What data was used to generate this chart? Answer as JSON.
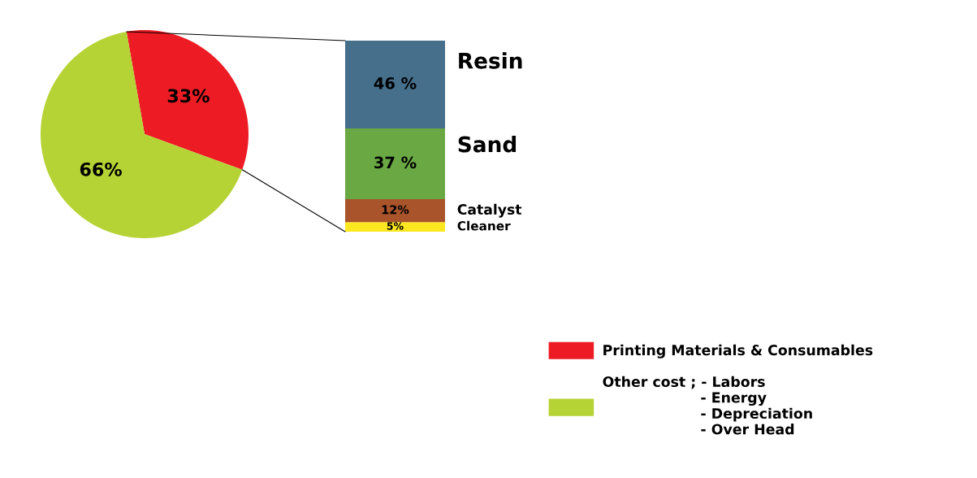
{
  "chart_data": [
    {
      "type": "pie",
      "categories": [
        "Printing Materials & Consumables",
        "Other cost ; - Labors\n                    - Energy\n                    - Depreciation\n                    - Over Head"
      ],
      "values": [
        33,
        66
      ],
      "colors": [
        "#ed1c24",
        "#b5d334"
      ],
      "value_labels": [
        "33%",
        "66%"
      ],
      "legend": "bottom right"
    },
    {
      "type": "bar",
      "stacked": true,
      "categories": [
        null
      ],
      "tick_labels": false,
      "ylim": [
        0,
        100
      ],
      "series": [
        {
          "name": "Cleaner",
          "color": "#fde720",
          "values": [
            5
          ],
          "value_labels": [
            "5%"
          ]
        },
        {
          "name": "Catalyst",
          "color": "#a9542a",
          "values": [
            12
          ],
          "value_labels": [
            "12%"
          ]
        },
        {
          "name": "Sand",
          "color": "#6aa844",
          "values": [
            37
          ],
          "value_labels": [
            "37 %"
          ]
        },
        {
          "name": "Resin",
          "color": "#456f8b",
          "values": [
            46
          ],
          "value_labels": [
            "46 %"
          ]
        }
      ]
    }
  ]
}
